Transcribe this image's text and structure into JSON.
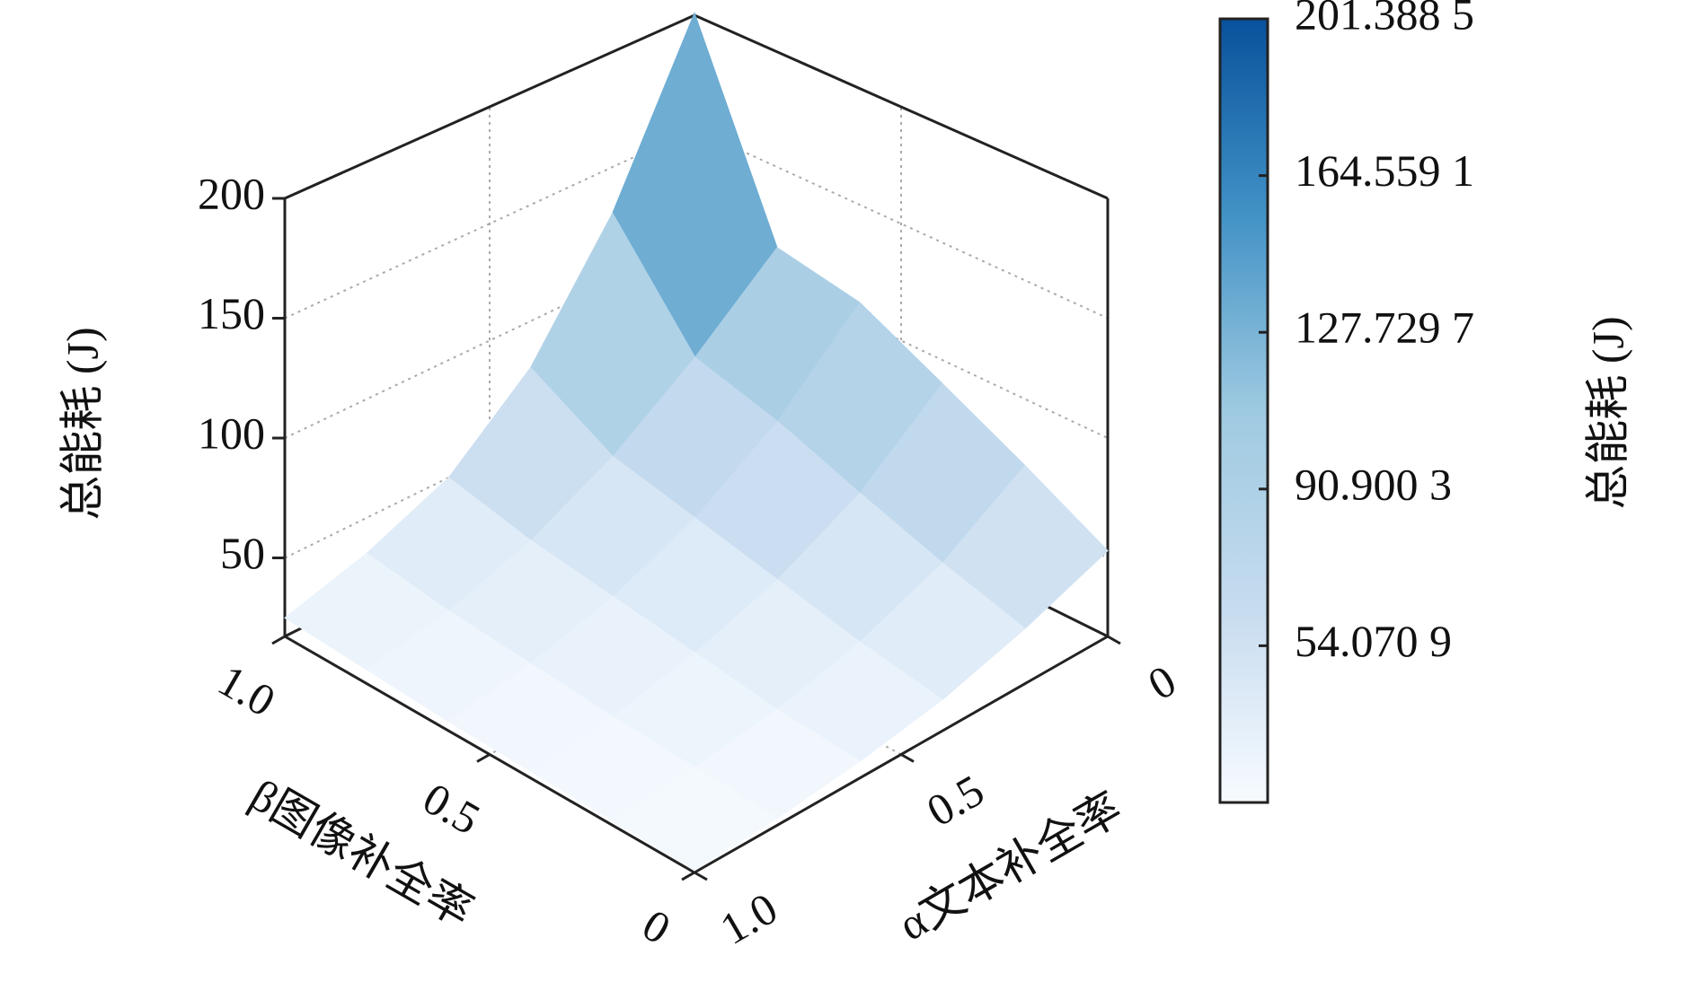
{
  "chart_data": {
    "type": "surface",
    "xlabel": "α文本补全率",
    "ylabel": "β图像补全率",
    "zlabel": "总能耗 (J)",
    "x": [
      0,
      0.2,
      0.4,
      0.6,
      0.8,
      1
    ],
    "y": [
      0,
      0.2,
      0.4,
      0.6,
      0.8,
      1
    ],
    "z": [
      [
        53,
        40,
        30,
        24,
        20,
        18
      ],
      [
        72,
        50,
        36,
        27,
        22,
        19
      ],
      [
        90,
        62,
        44,
        32,
        24,
        20
      ],
      [
        108,
        75,
        52,
        37,
        27,
        21
      ],
      [
        115,
        85,
        60,
        42,
        30,
        23
      ],
      [
        201,
        130,
        80,
        50,
        35,
        25
      ]
    ],
    "xlim": [
      0,
      1
    ],
    "ylim": [
      0,
      1
    ],
    "zlim": [
      17.24,
      200
    ],
    "xticks": [
      0,
      0.5,
      {
        "value": 1,
        "label": "1.0"
      }
    ],
    "yticks": [
      0,
      0.5,
      {
        "value": 1,
        "label": "1.0"
      }
    ],
    "zticks": [
      50,
      100,
      150,
      200
    ],
    "grid": true,
    "colormap": [
      "#f7fbff",
      "#c6dbef",
      "#9ecae1",
      "#4292c6",
      "#08519c"
    ],
    "colorbar": {
      "label": "总能耗 (J)",
      "clim": [
        17.2415,
        201.3885
      ],
      "ticks": [
        {
          "value": 54.0709,
          "label": "54.070 9"
        },
        {
          "value": 90.9003,
          "label": "90.900 3"
        },
        {
          "value": 127.7297,
          "label": "127.729 7"
        },
        {
          "value": 164.5591,
          "label": "164.559 1"
        },
        {
          "value": 201.3885,
          "label": "201.388 5"
        }
      ]
    }
  }
}
